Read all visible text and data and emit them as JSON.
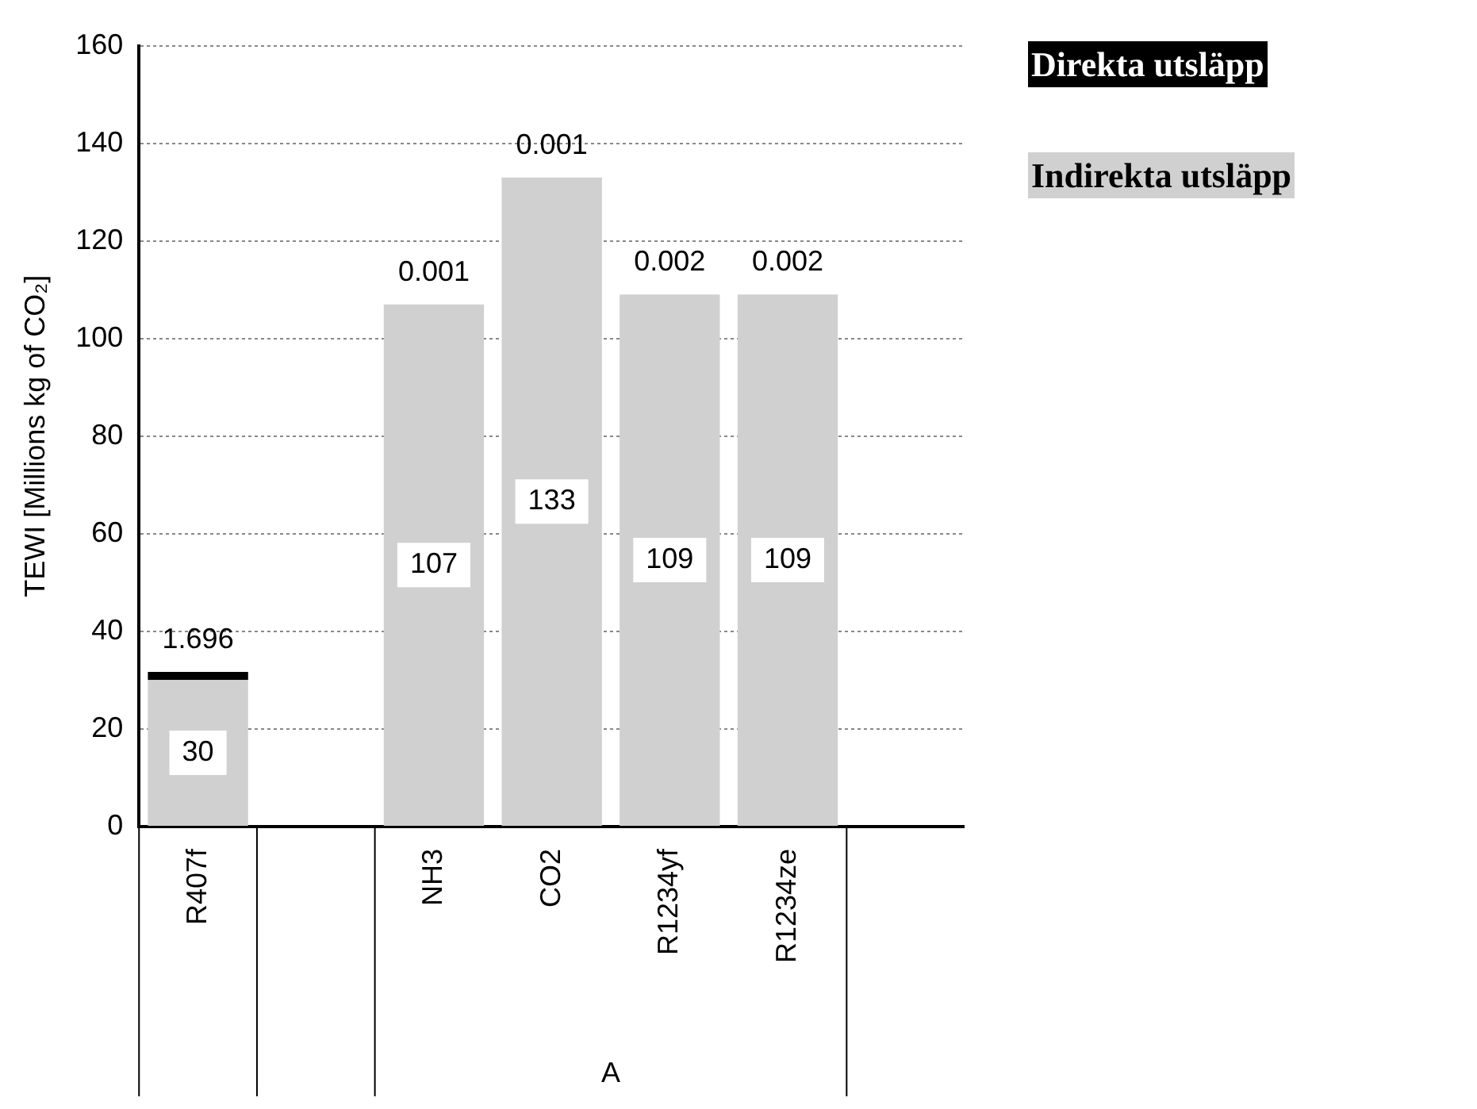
{
  "chart_data": {
    "type": "bar",
    "stacked": true,
    "ylabel": "TEWI [Millions kg of CO₂]",
    "categories": [
      "R407f",
      null,
      "NH3",
      "CO2",
      "R1234yf",
      "R1234ze",
      null
    ],
    "series": [
      {
        "name": "Indirekta utsläpp",
        "color": "#d0d0d0",
        "values": [
          30,
          null,
          107,
          133,
          109,
          109,
          null
        ]
      },
      {
        "name": "Direkta utsläpp",
        "color": "#000000",
        "values": [
          1.696,
          null,
          0.001,
          0.001,
          0.002,
          0.002,
          null
        ]
      }
    ],
    "annotations": [
      "A"
    ],
    "ylim": [
      0,
      160
    ],
    "yticks": [
      0,
      20,
      40,
      60,
      80,
      100,
      120,
      140,
      160
    ],
    "grid": "y",
    "legend": "right",
    "data_labels": true
  }
}
